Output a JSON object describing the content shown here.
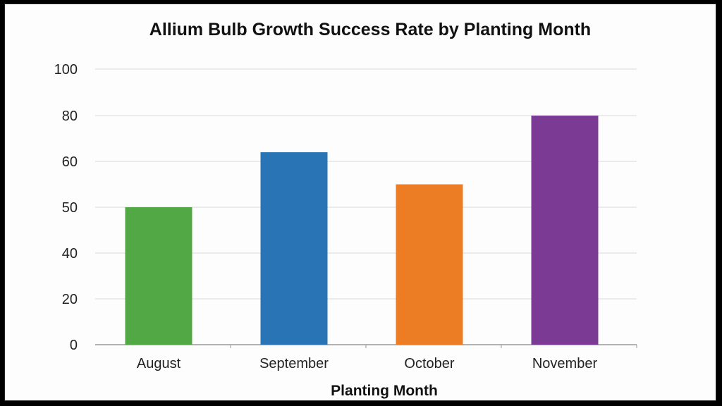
{
  "chart_data": {
    "type": "bar",
    "title": "Allium Bulb Growth Success Rate by Planting Month",
    "xlabel": "Planting Month",
    "ylabel": "",
    "categories": [
      "August",
      "September",
      "October",
      "November"
    ],
    "values": [
      50,
      64,
      55,
      80
    ],
    "y_ticks": [
      "0",
      "20",
      "40",
      "50",
      "60",
      "80",
      "100"
    ],
    "colors": [
      "#52a844",
      "#2874b4",
      "#ec7d25",
      "#7b3a93"
    ],
    "grid": true,
    "legend": "none"
  }
}
